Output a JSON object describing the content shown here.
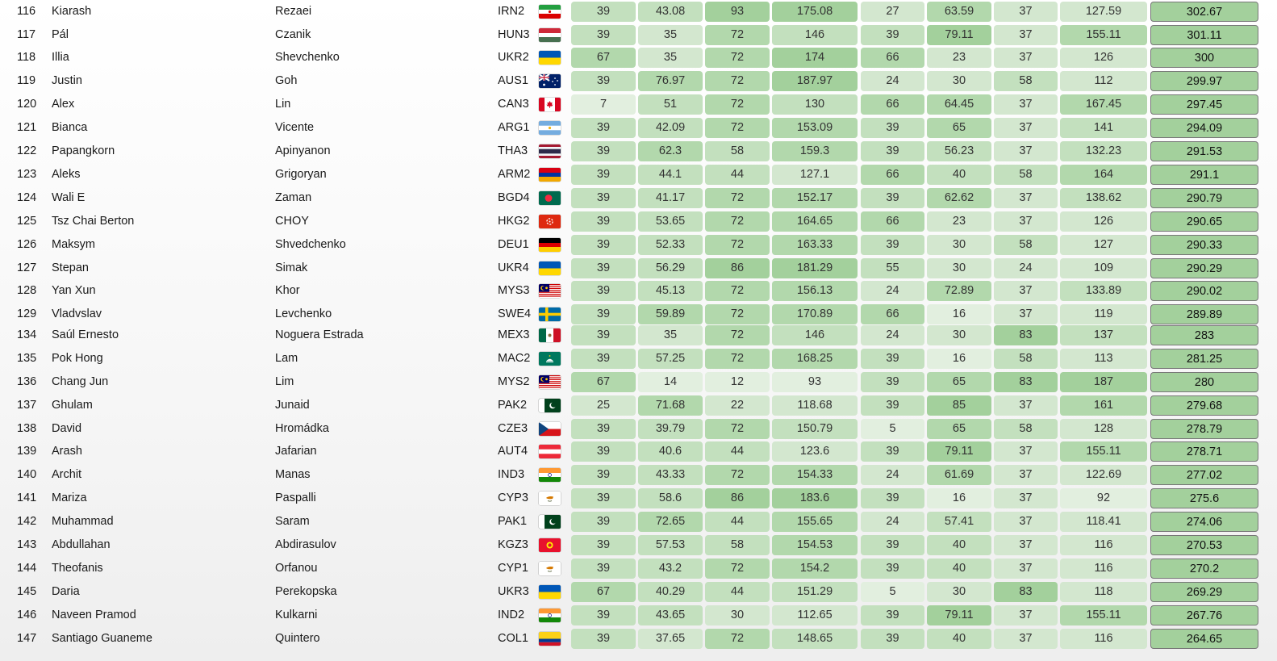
{
  "score_colors": {
    "very_light": "#e2efdf",
    "light": "#d3e7cf",
    "medium": "#c3e0be",
    "strong": "#b2d8ac",
    "stronger": "#a3d09c"
  },
  "rows": [
    {
      "rank": "116",
      "first": "Kiarash",
      "last": "Rezaei",
      "code": "IRN2",
      "flag": "IRN",
      "scores": [
        "39",
        "43.08",
        "93",
        "175.08",
        "27",
        "63.59",
        "37",
        "127.59"
      ],
      "total": "302.67"
    },
    {
      "rank": "117",
      "first": "Pál",
      "last": "Czanik",
      "code": "HUN3",
      "flag": "HUN",
      "scores": [
        "39",
        "35",
        "72",
        "146",
        "39",
        "79.11",
        "37",
        "155.11"
      ],
      "total": "301.11"
    },
    {
      "rank": "118",
      "first": "Illia",
      "last": "Shevchenko",
      "code": "UKR2",
      "flag": "UKR",
      "scores": [
        "67",
        "35",
        "72",
        "174",
        "66",
        "23",
        "37",
        "126"
      ],
      "total": "300"
    },
    {
      "rank": "119",
      "first": "Justin",
      "last": "Goh",
      "code": "AUS1",
      "flag": "AUS",
      "scores": [
        "39",
        "76.97",
        "72",
        "187.97",
        "24",
        "30",
        "58",
        "112"
      ],
      "total": "299.97"
    },
    {
      "rank": "120",
      "first": "Alex",
      "last": "Lin",
      "code": "CAN3",
      "flag": "CAN",
      "scores": [
        "7",
        "51",
        "72",
        "130",
        "66",
        "64.45",
        "37",
        "167.45"
      ],
      "total": "297.45"
    },
    {
      "rank": "121",
      "first": "Bianca",
      "last": "Vicente",
      "code": "ARG1",
      "flag": "ARG",
      "scores": [
        "39",
        "42.09",
        "72",
        "153.09",
        "39",
        "65",
        "37",
        "141"
      ],
      "total": "294.09"
    },
    {
      "rank": "122",
      "first": "Papangkorn",
      "last": "Apinyanon",
      "code": "THA3",
      "flag": "THA",
      "scores": [
        "39",
        "62.3",
        "58",
        "159.3",
        "39",
        "56.23",
        "37",
        "132.23"
      ],
      "total": "291.53"
    },
    {
      "rank": "123",
      "first": "Aleks",
      "last": "Grigoryan",
      "code": "ARM2",
      "flag": "ARM",
      "scores": [
        "39",
        "44.1",
        "44",
        "127.1",
        "66",
        "40",
        "58",
        "164"
      ],
      "total": "291.1"
    },
    {
      "rank": "124",
      "first": "Wali E",
      "last": "Zaman",
      "code": "BGD4",
      "flag": "BGD",
      "scores": [
        "39",
        "41.17",
        "72",
        "152.17",
        "39",
        "62.62",
        "37",
        "138.62"
      ],
      "total": "290.79"
    },
    {
      "rank": "125",
      "first": "Tsz Chai Berton",
      "last": "CHOY",
      "code": "HKG2",
      "flag": "HKG",
      "scores": [
        "39",
        "53.65",
        "72",
        "164.65",
        "66",
        "23",
        "37",
        "126"
      ],
      "total": "290.65"
    },
    {
      "rank": "126",
      "first": "Maksym",
      "last": "Shvedchenko",
      "code": "DEU1",
      "flag": "DEU",
      "scores": [
        "39",
        "52.33",
        "72",
        "163.33",
        "39",
        "30",
        "58",
        "127"
      ],
      "total": "290.33"
    },
    {
      "rank": "127",
      "first": "Stepan",
      "last": "Simak",
      "code": "UKR4",
      "flag": "UKR",
      "scores": [
        "39",
        "56.29",
        "86",
        "181.29",
        "55",
        "30",
        "24",
        "109"
      ],
      "total": "290.29"
    },
    {
      "rank": "128",
      "first": "Yan Xun",
      "last": "Khor",
      "code": "MYS3",
      "flag": "MYS",
      "scores": [
        "39",
        "45.13",
        "72",
        "156.13",
        "24",
        "72.89",
        "37",
        "133.89"
      ],
      "total": "290.02"
    },
    {
      "rank": "129",
      "first": "Vladvslav",
      "last": "Levchenko",
      "code": "SWE4",
      "flag": "SWE",
      "scores": [
        "39",
        "59.89",
        "72",
        "170.89",
        "66",
        "16",
        "37",
        "119"
      ],
      "total": "289.89"
    },
    {
      "rank": "134",
      "first": "Saúl Ernesto",
      "last": "Noguera Estrada",
      "code": "MEX3",
      "flag": "MEX",
      "scores": [
        "39",
        "35",
        "72",
        "146",
        "24",
        "30",
        "83",
        "137"
      ],
      "total": "283"
    },
    {
      "rank": "135",
      "first": "Pok Hong",
      "last": "Lam",
      "code": "MAC2",
      "flag": "MAC",
      "scores": [
        "39",
        "57.25",
        "72",
        "168.25",
        "39",
        "16",
        "58",
        "113"
      ],
      "total": "281.25"
    },
    {
      "rank": "136",
      "first": "Chang Jun",
      "last": "Lim",
      "code": "MYS2",
      "flag": "MYS",
      "scores": [
        "67",
        "14",
        "12",
        "93",
        "39",
        "65",
        "83",
        "187"
      ],
      "total": "280"
    },
    {
      "rank": "137",
      "first": "Ghulam",
      "last": "Junaid",
      "code": "PAK2",
      "flag": "PAK",
      "scores": [
        "25",
        "71.68",
        "22",
        "118.68",
        "39",
        "85",
        "37",
        "161"
      ],
      "total": "279.68"
    },
    {
      "rank": "138",
      "first": "David",
      "last": "Hromádka",
      "code": "CZE3",
      "flag": "CZE",
      "scores": [
        "39",
        "39.79",
        "72",
        "150.79",
        "5",
        "65",
        "58",
        "128"
      ],
      "total": "278.79"
    },
    {
      "rank": "139",
      "first": "Arash",
      "last": "Jafarian",
      "code": "AUT4",
      "flag": "AUT",
      "scores": [
        "39",
        "40.6",
        "44",
        "123.6",
        "39",
        "79.11",
        "37",
        "155.11"
      ],
      "total": "278.71"
    },
    {
      "rank": "140",
      "first": "Archit",
      "last": "Manas",
      "code": "IND3",
      "flag": "IND",
      "scores": [
        "39",
        "43.33",
        "72",
        "154.33",
        "24",
        "61.69",
        "37",
        "122.69"
      ],
      "total": "277.02"
    },
    {
      "rank": "141",
      "first": "Mariza",
      "last": "Paspalli",
      "code": "CYP3",
      "flag": "CYP",
      "scores": [
        "39",
        "58.6",
        "86",
        "183.6",
        "39",
        "16",
        "37",
        "92"
      ],
      "total": "275.6"
    },
    {
      "rank": "142",
      "first": "Muhammad",
      "last": "Saram",
      "code": "PAK1",
      "flag": "PAK",
      "scores": [
        "39",
        "72.65",
        "44",
        "155.65",
        "24",
        "57.41",
        "37",
        "118.41"
      ],
      "total": "274.06"
    },
    {
      "rank": "143",
      "first": "Abdullahan",
      "last": "Abdirasulov",
      "code": "KGZ3",
      "flag": "KGZ",
      "scores": [
        "39",
        "57.53",
        "58",
        "154.53",
        "39",
        "40",
        "37",
        "116"
      ],
      "total": "270.53"
    },
    {
      "rank": "144",
      "first": "Theofanis",
      "last": "Orfanou",
      "code": "CYP1",
      "flag": "CYP",
      "scores": [
        "39",
        "43.2",
        "72",
        "154.2",
        "39",
        "40",
        "37",
        "116"
      ],
      "total": "270.2"
    },
    {
      "rank": "145",
      "first": "Daria",
      "last": "Perekopska",
      "code": "UKR3",
      "flag": "UKR",
      "scores": [
        "67",
        "40.29",
        "44",
        "151.29",
        "5",
        "30",
        "83",
        "118"
      ],
      "total": "269.29"
    },
    {
      "rank": "146",
      "first": "Naveen Pramod",
      "last": "Kulkarni",
      "code": "IND2",
      "flag": "IND",
      "scores": [
        "39",
        "43.65",
        "30",
        "112.65",
        "39",
        "79.11",
        "37",
        "155.11"
      ],
      "total": "267.76"
    },
    {
      "rank": "147",
      "first": "Santiago Guaneme",
      "last": "Quintero",
      "code": "COL1",
      "flag": "COL",
      "scores": [
        "39",
        "37.65",
        "72",
        "148.65",
        "39",
        "40",
        "37",
        "116"
      ],
      "total": "264.65"
    }
  ]
}
